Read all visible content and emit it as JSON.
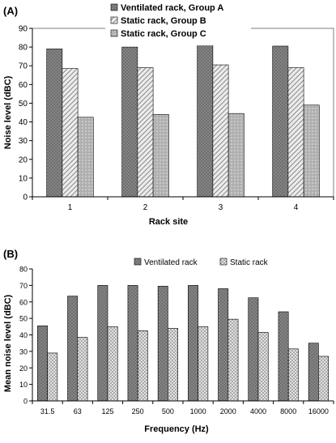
{
  "colors": {
    "series_a_fill": "#7f7f7f",
    "series_b_fill": "#d9d9d9",
    "series_c_fill": "#bcbcbc",
    "axis": "#000000",
    "frame": "#7f7f7f"
  },
  "chart_data": [
    {
      "panel_label": "(A)",
      "type": "bar",
      "xlabel": "Rack site",
      "ylabel": "Noise level (dBC)",
      "ylim": [
        0,
        90
      ],
      "yticks": [
        0,
        10,
        20,
        30,
        40,
        50,
        60,
        70,
        80,
        90
      ],
      "grid": false,
      "legend": "top-center",
      "categories": [
        "1",
        "2",
        "3",
        "4"
      ],
      "series": [
        {
          "name": "Ventilated rack, Group A",
          "values": [
            79,
            80,
            82,
            80.5
          ]
        },
        {
          "name": "Static rack, Group B",
          "values": [
            68.5,
            69,
            70.5,
            69
          ]
        },
        {
          "name": "Static rack, Group C",
          "values": [
            42.5,
            44,
            44.5,
            49
          ]
        }
      ]
    },
    {
      "panel_label": "(B)",
      "type": "bar",
      "xlabel": "Frequency (Hz)",
      "ylabel": "Mean noise level (dBC)",
      "ylim": [
        0,
        80
      ],
      "yticks": [
        0,
        10,
        20,
        30,
        40,
        50,
        60,
        70,
        80
      ],
      "grid": false,
      "legend": "top-center",
      "categories": [
        "31.5",
        "63",
        "125",
        "250",
        "500",
        "1000",
        "2000",
        "4000",
        "8000",
        "16000"
      ],
      "series": [
        {
          "name": "Ventilated rack",
          "values": [
            45.5,
            63.5,
            70,
            70,
            69.5,
            70,
            68,
            62.5,
            54,
            35
          ]
        },
        {
          "name": "Static rack",
          "values": [
            29,
            38.5,
            45,
            42.5,
            44,
            45,
            49.5,
            41.5,
            31.5,
            27
          ]
        }
      ]
    }
  ]
}
